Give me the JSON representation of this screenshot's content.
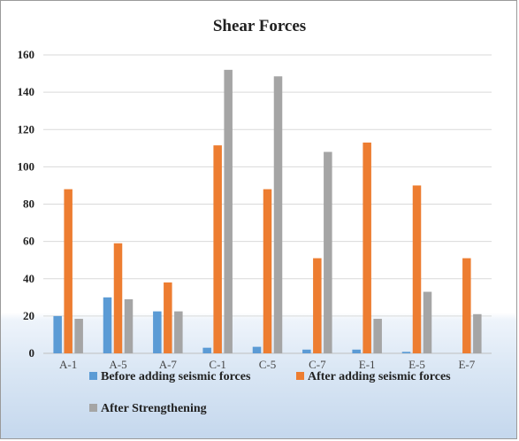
{
  "chart_data": {
    "type": "bar",
    "title": "Shear Forces",
    "xlabel": "",
    "ylabel": "",
    "ylim": [
      0,
      160
    ],
    "yticks": [
      0,
      20,
      40,
      60,
      80,
      100,
      120,
      140,
      160
    ],
    "grid": true,
    "legend_position": "bottom",
    "categories": [
      "A-1",
      "A-5",
      "A-7",
      "C-1",
      "C-5",
      "C-7",
      "E-1",
      "E-5",
      "E-7"
    ],
    "series": [
      {
        "name": "Before adding seismic forces",
        "color": "#5b9bd5",
        "values": [
          20,
          30,
          22.5,
          3,
          3.5,
          2,
          2,
          0.8,
          0
        ]
      },
      {
        "name": "After adding seismic forces",
        "color": "#ed7d31",
        "values": [
          88,
          59,
          38,
          111.5,
          88,
          51,
          113,
          90,
          51
        ]
      },
      {
        "name": "After Strengthening",
        "color": "#a5a5a5",
        "values": [
          18.5,
          29,
          22.5,
          152,
          148.5,
          108,
          18.5,
          33,
          21
        ]
      }
    ]
  }
}
